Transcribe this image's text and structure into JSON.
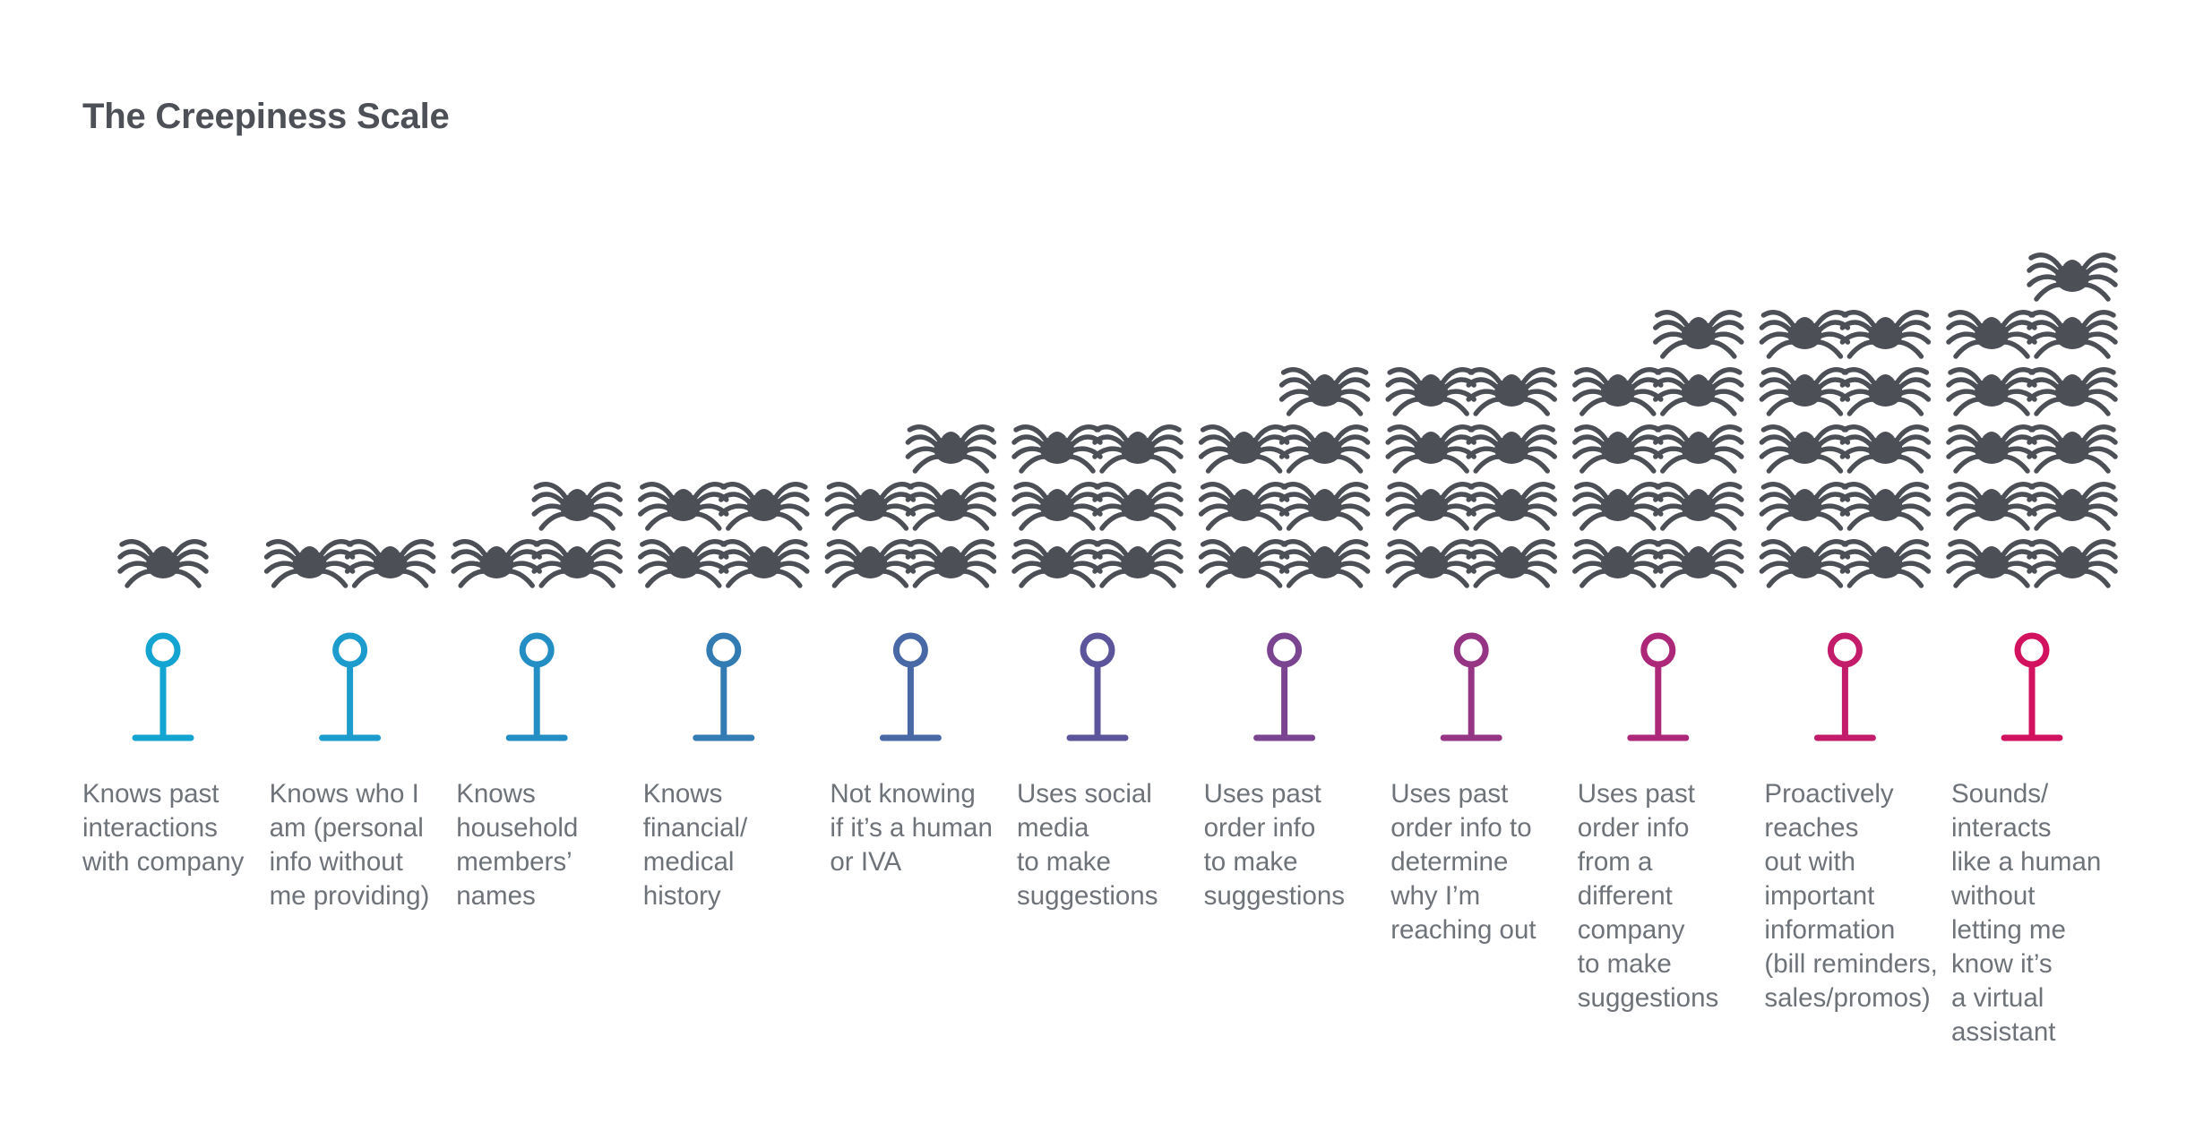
{
  "title": "The Creepiness Scale",
  "colors": {
    "spider": "#4c5056",
    "gradient_start": "#14a4d2",
    "gradient_mid": "#6a4596",
    "gradient_end": "#d2125e",
    "text": "#6e7379",
    "title": "#4d5157"
  },
  "icon": "spider-icon",
  "stages": [
    {
      "label": "Knows past\ninteractions\nwith company",
      "spiders": 1,
      "color": "#14a4d2"
    },
    {
      "label": "Knows who I\nam (personal\ninfo without\nme providing)",
      "spiders": 2,
      "color": "#1b9ccc"
    },
    {
      "label": "Knows\nhousehold\nmembers’\nnames",
      "spiders": 3,
      "color": "#238ec3"
    },
    {
      "label": "Knows\nfinancial/\nmedical\nhistory",
      "spiders": 4,
      "color": "#337bb3"
    },
    {
      "label": "Not knowing\nif it’s a human\nor IVA",
      "spiders": 5,
      "color": "#4868a6"
    },
    {
      "label": "Uses social\nmedia\nto make\nsuggestions",
      "spiders": 6,
      "color": "#5d559c"
    },
    {
      "label": "Uses past\norder info\nto make\nsuggestions",
      "spiders": 7,
      "color": "#7a4491"
    },
    {
      "label": "Uses past\norder info to\ndetermine\nwhy I’m\nreaching out",
      "spiders": 8,
      "color": "#953584"
    },
    {
      "label": "Uses past\norder info\nfrom a\ndifferent\ncompany\nto make\nsuggestions",
      "spiders": 9,
      "color": "#ad2878"
    },
    {
      "label": "Proactively\nreaches\nout with\nimportant\ninformation\n(bill reminders,\nsales/promos)",
      "spiders": 10,
      "color": "#c21c6a"
    },
    {
      "label": "Sounds/\ninteracts\nlike a human\nwithout\nletting me\nknow it’s\na virtual\nassistant",
      "spiders": 11,
      "color": "#d2125e"
    }
  ]
}
